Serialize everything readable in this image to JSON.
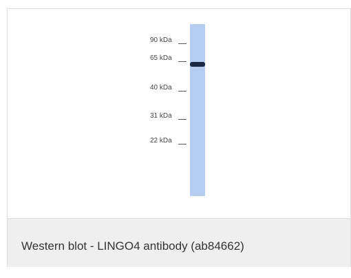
{
  "figure": {
    "markers": [
      "90 kDa",
      "65 kDa",
      "40 kDa",
      "31 kDa",
      "22 kDa"
    ]
  },
  "caption": "Western blot - LINGO4 antibody (ab84662)"
}
